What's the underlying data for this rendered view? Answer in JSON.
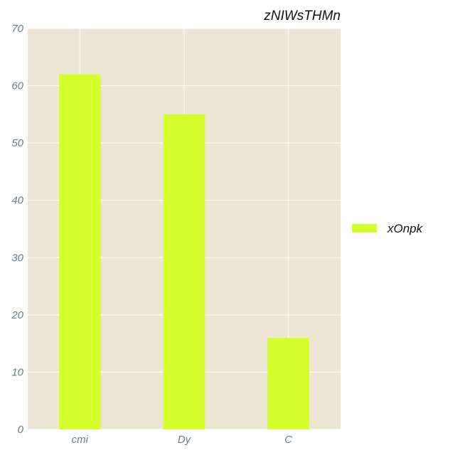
{
  "chart_data": {
    "type": "bar",
    "title": "zNIWsTHMn",
    "xlabel": "",
    "ylabel": "",
    "categories": [
      "cmi",
      "Dy",
      "C"
    ],
    "series": [
      {
        "name": "xOnpk",
        "values": [
          62,
          55,
          16
        ],
        "color": "#d4ff2a"
      }
    ],
    "ylim": [
      0,
      70
    ],
    "yticks": [
      0,
      10,
      20,
      30,
      40,
      50,
      60,
      70
    ],
    "grid": true,
    "legend_position": "right",
    "colors": {
      "plot_background": "#ede6d4",
      "grid": "#ffffff",
      "tick_text": "#6b7b8c"
    }
  }
}
